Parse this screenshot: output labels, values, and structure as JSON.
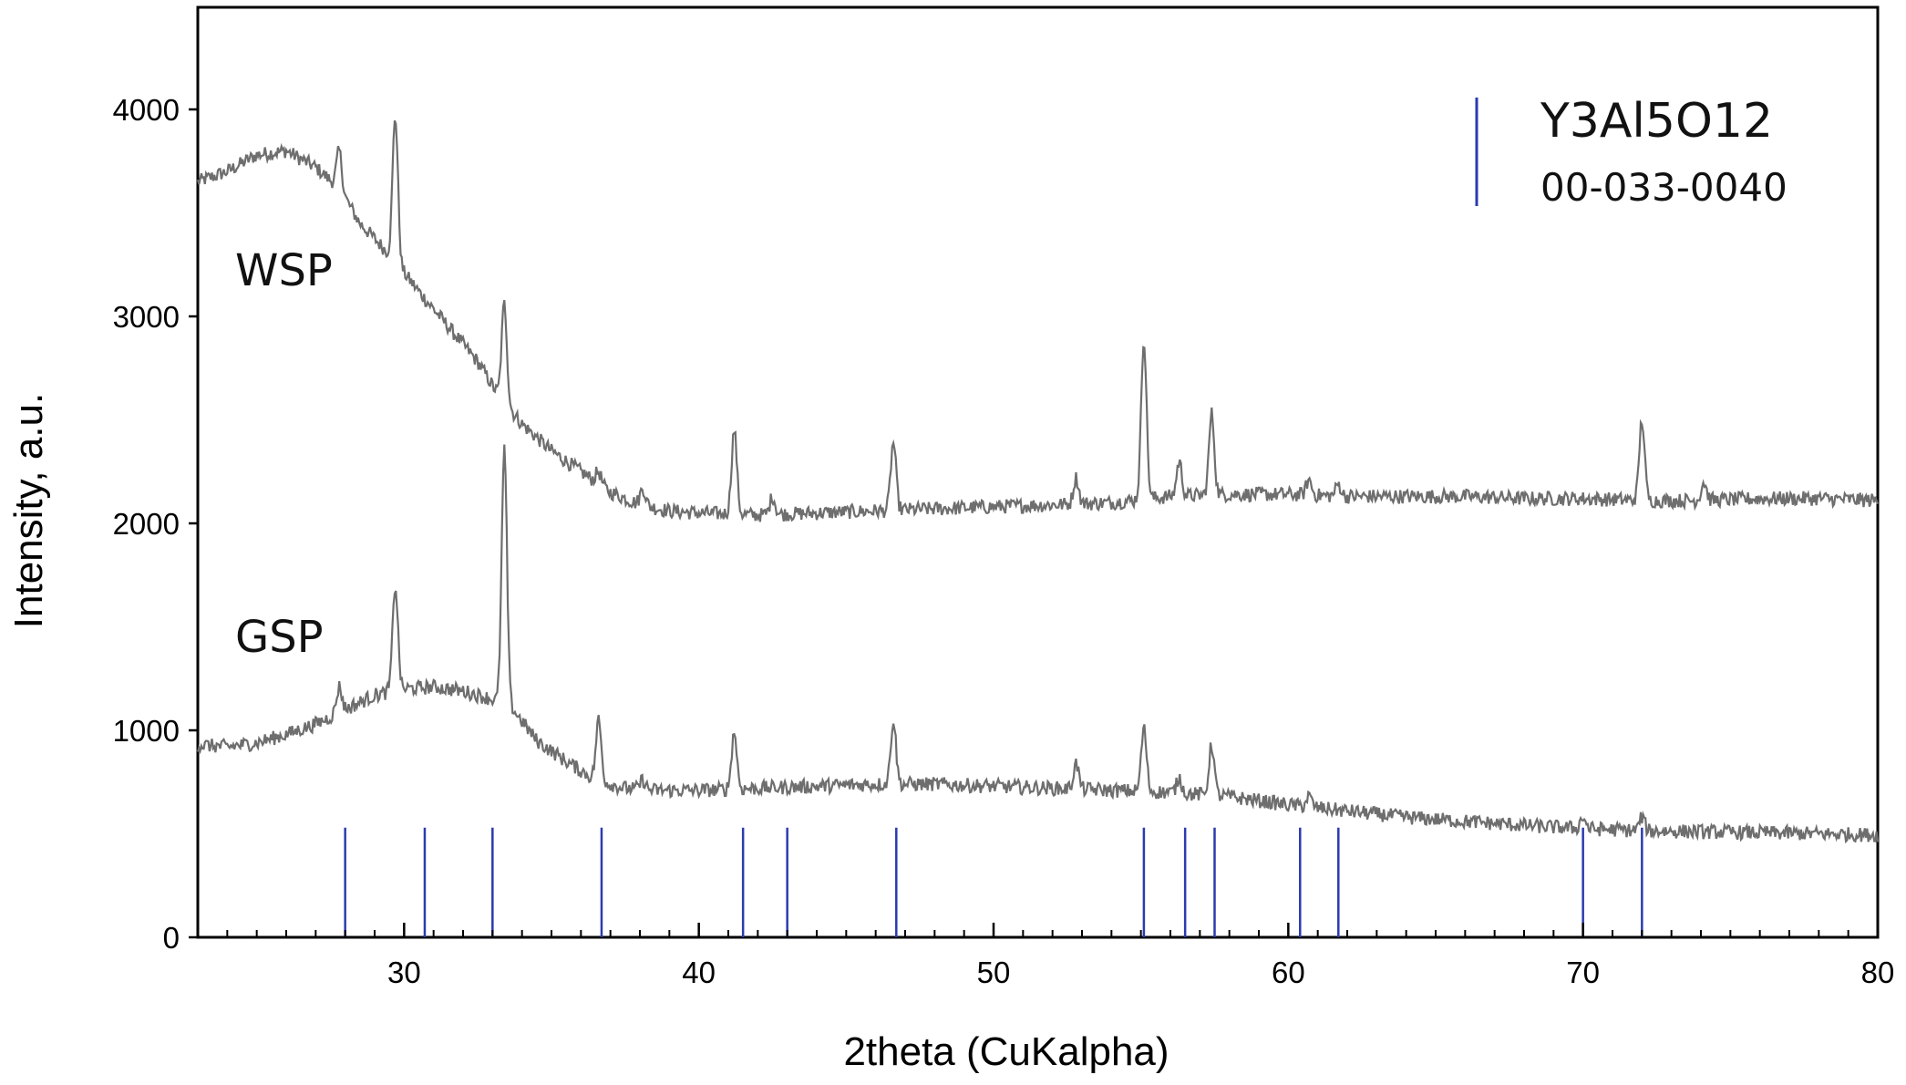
{
  "chart_data": {
    "type": "line",
    "title": "",
    "xlabel": "2theta (CuKalpha)",
    "ylabel": "Intensity, a.u.",
    "xlim": [
      23,
      80
    ],
    "ylim": [
      0,
      4500
    ],
    "x_ticks": [
      30,
      40,
      50,
      60,
      70,
      80
    ],
    "y_ticks": [
      0,
      1000,
      2000,
      3000,
      4000
    ],
    "grid": false,
    "colors": {
      "series": "#6e6e6e",
      "reference": "#2b3bb0",
      "frame": "#000000"
    },
    "series": [
      {
        "name": "WSP",
        "points": [
          [
            23,
            3650
          ],
          [
            24,
            3700
          ],
          [
            25,
            3780
          ],
          [
            26,
            3800
          ],
          [
            27,
            3720
          ],
          [
            27.8,
            3620
          ],
          [
            28.5,
            3450
          ],
          [
            29.5,
            3300
          ],
          [
            30.5,
            3120
          ],
          [
            31.5,
            2950
          ],
          [
            32.5,
            2780
          ],
          [
            33.2,
            2620
          ],
          [
            34,
            2480
          ],
          [
            35,
            2350
          ],
          [
            36,
            2250
          ],
          [
            37,
            2150
          ],
          [
            38,
            2090
          ],
          [
            39,
            2060
          ],
          [
            40,
            2050
          ],
          [
            42,
            2040
          ],
          [
            44,
            2050
          ],
          [
            46,
            2060
          ],
          [
            48,
            2070
          ],
          [
            50,
            2080
          ],
          [
            52,
            2090
          ],
          [
            54,
            2100
          ],
          [
            56,
            2130
          ],
          [
            58,
            2140
          ],
          [
            60,
            2140
          ],
          [
            62,
            2130
          ],
          [
            64,
            2130
          ],
          [
            66,
            2130
          ],
          [
            68,
            2120
          ],
          [
            70,
            2120
          ],
          [
            72,
            2110
          ],
          [
            74,
            2110
          ],
          [
            76,
            2120
          ],
          [
            78,
            2120
          ],
          [
            80,
            2110
          ]
        ],
        "peaks": [
          [
            27.8,
            3800
          ],
          [
            29.7,
            3970
          ],
          [
            33.4,
            3060
          ],
          [
            36.6,
            2250
          ],
          [
            38.1,
            2170
          ],
          [
            41.2,
            2450
          ],
          [
            42.5,
            2130
          ],
          [
            46.6,
            2390
          ],
          [
            52.8,
            2220
          ],
          [
            55.1,
            2900
          ],
          [
            56.3,
            2300
          ],
          [
            57.4,
            2530
          ],
          [
            60.7,
            2210
          ],
          [
            61.7,
            2190
          ],
          [
            72.0,
            2500
          ],
          [
            74.1,
            2200
          ]
        ]
      },
      {
        "name": "GSP",
        "points": [
          [
            23,
            930
          ],
          [
            24,
            920
          ],
          [
            25,
            940
          ],
          [
            26,
            980
          ],
          [
            27,
            1030
          ],
          [
            28,
            1100
          ],
          [
            29,
            1170
          ],
          [
            30,
            1200
          ],
          [
            31,
            1210
          ],
          [
            32,
            1190
          ],
          [
            33,
            1150
          ],
          [
            33.7,
            1100
          ],
          [
            34.5,
            950
          ],
          [
            35.5,
            850
          ],
          [
            36.5,
            760
          ],
          [
            37.5,
            720
          ],
          [
            38.5,
            710
          ],
          [
            40,
            710
          ],
          [
            42,
            720
          ],
          [
            44,
            730
          ],
          [
            46,
            740
          ],
          [
            48,
            740
          ],
          [
            50,
            730
          ],
          [
            52,
            720
          ],
          [
            54,
            710
          ],
          [
            56,
            700
          ],
          [
            58,
            680
          ],
          [
            60,
            640
          ],
          [
            62,
            610
          ],
          [
            64,
            580
          ],
          [
            66,
            560
          ],
          [
            68,
            540
          ],
          [
            70,
            525
          ],
          [
            72,
            515
          ],
          [
            74,
            510
          ],
          [
            76,
            505
          ],
          [
            78,
            500
          ],
          [
            80,
            495
          ]
        ],
        "peaks": [
          [
            27.8,
            1210
          ],
          [
            29.7,
            1700
          ],
          [
            33.4,
            2350
          ],
          [
            36.6,
            1050
          ],
          [
            38.1,
            760
          ],
          [
            41.2,
            990
          ],
          [
            46.6,
            1050
          ],
          [
            52.8,
            840
          ],
          [
            55.1,
            1010
          ],
          [
            56.3,
            770
          ],
          [
            57.4,
            930
          ],
          [
            60.7,
            680
          ],
          [
            70.0,
            580
          ],
          [
            72.0,
            580
          ]
        ]
      }
    ],
    "reference": {
      "name": "Y3Al5O12",
      "code": "00-033-0040",
      "lines": [
        28.0,
        30.7,
        33.0,
        36.7,
        41.5,
        43.0,
        46.7,
        55.1,
        56.5,
        57.5,
        60.4,
        61.7,
        70.0,
        72.0
      ],
      "height": 530
    }
  }
}
